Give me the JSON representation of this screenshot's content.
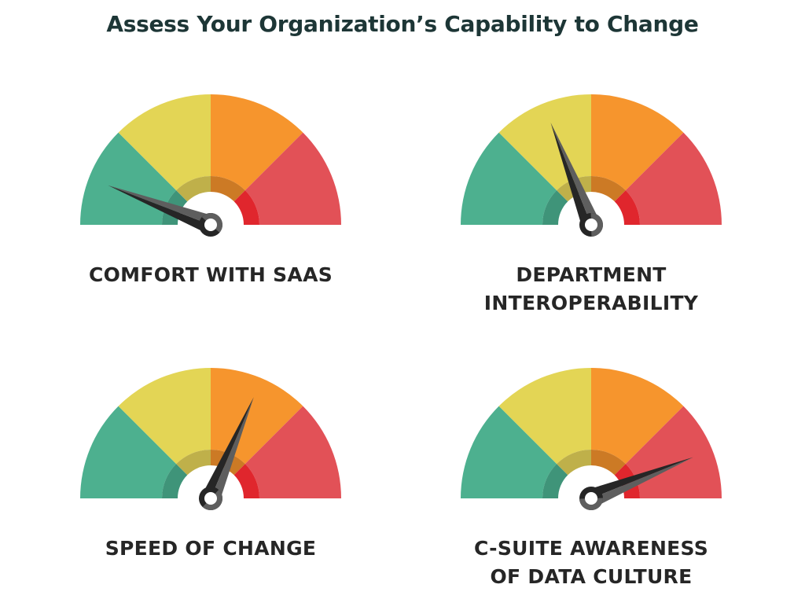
{
  "title": "Assess Your Organization’s Capability to Change",
  "colors": {
    "zones": [
      "#4db08f",
      "#e3d555",
      "#f6952d",
      "#e25157"
    ],
    "inner_zones": [
      "#3f9479",
      "#bfb04a",
      "#cc7a25",
      "#e0262d"
    ],
    "needle_dark": "#262626",
    "needle_light": "#5e5e5e",
    "title": "#1d3636"
  },
  "gauges": [
    {
      "label_lines": [
        "COMFORT WITH SAAS"
      ],
      "value": 0.117
    },
    {
      "label_lines": [
        "DEPARTMENT",
        "INTEROPERABILITY"
      ],
      "value": 0.38
    },
    {
      "label_lines": [
        "SPEED OF CHANGE"
      ],
      "value": 0.628
    },
    {
      "label_lines": [
        "C-SUITE AWARENESS",
        "OF DATA CULTURE"
      ],
      "value": 0.878
    }
  ]
}
